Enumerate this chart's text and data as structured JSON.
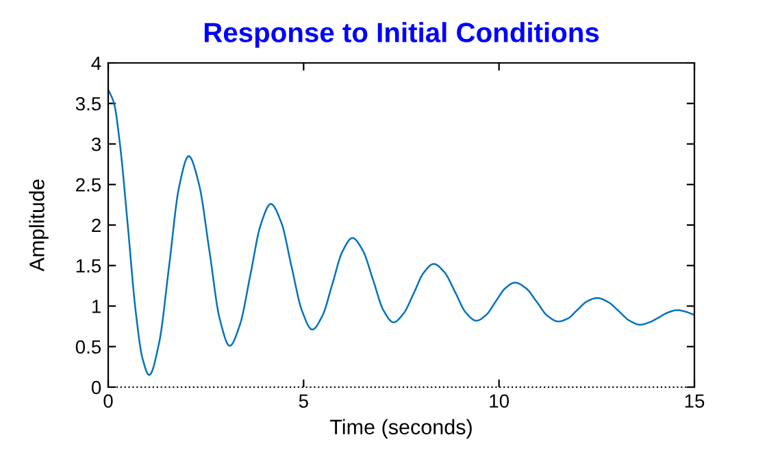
{
  "chart_data": {
    "type": "line",
    "title": "Response to Initial Conditions",
    "xlabel": "Time (seconds)",
    "ylabel": "Amplitude",
    "x": [
      0,
      0.15,
      0.3,
      0.5,
      0.7,
      0.88,
      1.05,
      1.3,
      1.56,
      1.81,
      2.06,
      2.32,
      2.59,
      2.85,
      3.11,
      3.37,
      3.64,
      3.9,
      4.16,
      4.43,
      4.69,
      4.96,
      5.22,
      5.48,
      5.74,
      5.99,
      6.25,
      6.51,
      6.78,
      7.04,
      7.3,
      7.56,
      7.82,
      8.07,
      8.33,
      8.6,
      8.88,
      9.15,
      9.42,
      9.67,
      9.92,
      10.16,
      10.41,
      10.69,
      10.97,
      11.24,
      11.52,
      11.77,
      12.02,
      12.26,
      12.51,
      12.79,
      13.06,
      13.34,
      13.61,
      13.85,
      14.09,
      14.32,
      14.56,
      14.78,
      15
    ],
    "series": [
      {
        "color": "#0072bd",
        "values": [
          3.67,
          3.5,
          3.0,
          2.0,
          0.95,
          0.35,
          0.15,
          0.54,
          1.5,
          2.46,
          2.85,
          2.51,
          1.68,
          0.85,
          0.51,
          0.77,
          1.39,
          2.0,
          2.26,
          2.03,
          1.49,
          0.94,
          0.71,
          0.88,
          1.28,
          1.67,
          1.84,
          1.69,
          1.32,
          0.95,
          0.8,
          0.91,
          1.16,
          1.41,
          1.52,
          1.42,
          1.17,
          0.92,
          0.82,
          0.89,
          1.06,
          1.22,
          1.29,
          1.22,
          1.05,
          0.88,
          0.81,
          0.85,
          0.96,
          1.06,
          1.1,
          1.05,
          0.94,
          0.82,
          0.77,
          0.8,
          0.86,
          0.92,
          0.95,
          0.93,
          0.89
        ]
      }
    ],
    "xlim": [
      0,
      15
    ],
    "ylim": [
      0,
      4
    ],
    "xticks": [
      0,
      5,
      10,
      15
    ],
    "yticks": [
      0,
      0.5,
      1,
      1.5,
      2,
      2.5,
      3,
      3.5,
      4
    ],
    "ref_lines": [
      {
        "axis": "y",
        "value": 0,
        "color": "#000000",
        "line_style": "dotted"
      }
    ],
    "grid": false,
    "marker": "none",
    "line_style": "solid"
  }
}
